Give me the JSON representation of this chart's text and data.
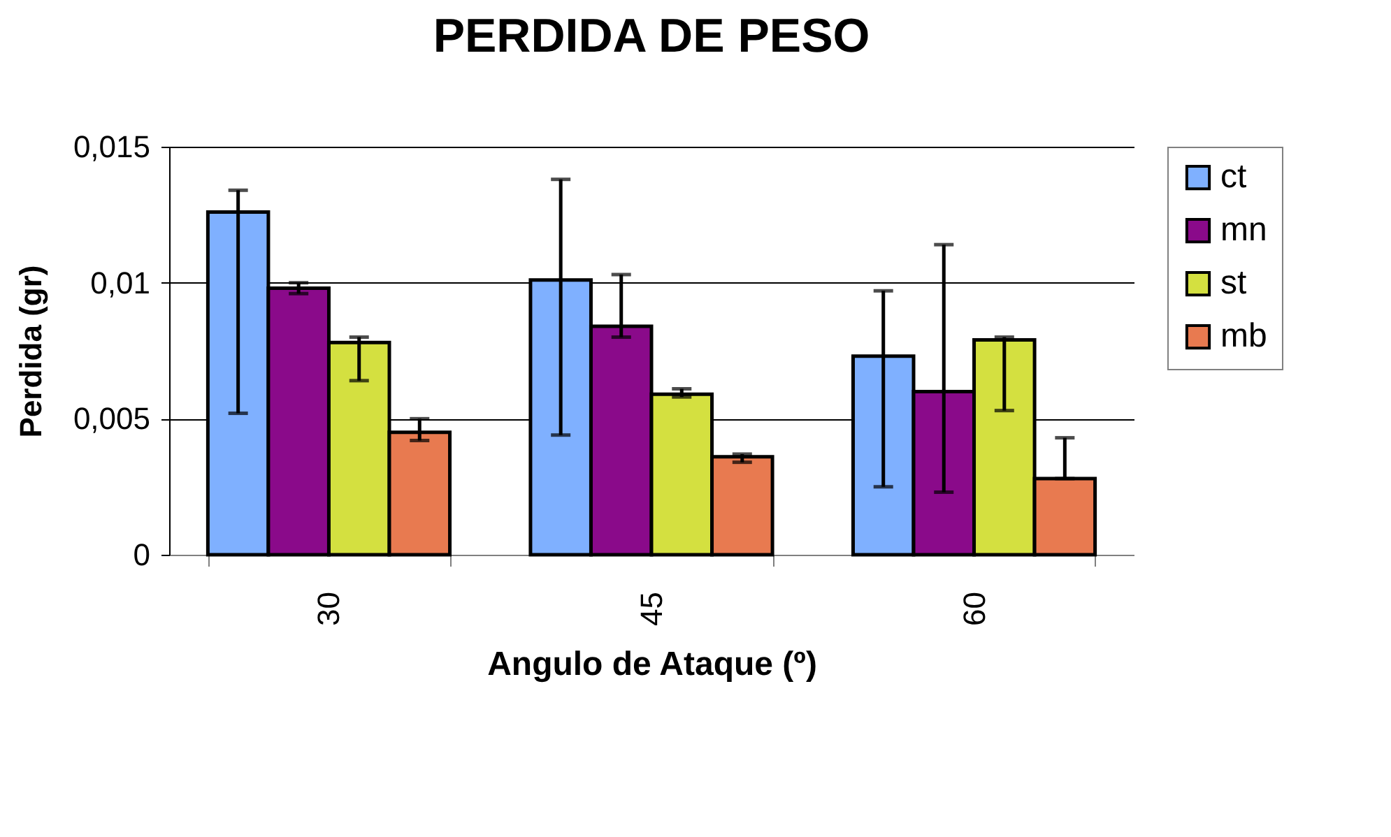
{
  "chart_data": {
    "type": "bar",
    "title": "PERDIDA DE PESO",
    "xlabel": "Angulo de Ataque (º)",
    "ylabel": "Perdida (gr)",
    "categories": [
      "30",
      "45",
      "60"
    ],
    "series": [
      {
        "name": "ct",
        "color": "#7fb0ff",
        "values": [
          0.0126,
          0.0101,
          0.0073
        ],
        "errors": [
          [
            0.0052,
            0.0134
          ],
          [
            0.0044,
            0.0138
          ],
          [
            0.0025,
            0.0097
          ]
        ]
      },
      {
        "name": "mn",
        "color": "#8a0a8a",
        "values": [
          0.0098,
          0.0084,
          0.006
        ],
        "errors": [
          [
            0.0096,
            0.01
          ],
          [
            0.008,
            0.0103
          ],
          [
            0.0023,
            0.0114
          ]
        ]
      },
      {
        "name": "st",
        "color": "#d4e040",
        "values": [
          0.0078,
          0.0059,
          0.0079
        ],
        "errors": [
          [
            0.0064,
            0.008
          ],
          [
            0.0058,
            0.0061
          ],
          [
            0.0053,
            0.008
          ]
        ]
      },
      {
        "name": "mb",
        "color": "#e87a50",
        "values": [
          0.0045,
          0.0036,
          0.0028
        ],
        "errors": [
          [
            0.0042,
            0.005
          ],
          [
            0.0034,
            0.0037
          ],
          [
            0.0028,
            0.0043
          ]
        ]
      }
    ],
    "ylim": [
      0,
      0.015
    ],
    "yticks": [
      {
        "value": 0,
        "label": "0"
      },
      {
        "value": 0.005,
        "label": "0,005"
      },
      {
        "value": 0.01,
        "label": "0,01"
      },
      {
        "value": 0.015,
        "label": "0,015"
      }
    ],
    "grid": "y",
    "legend": "right"
  }
}
